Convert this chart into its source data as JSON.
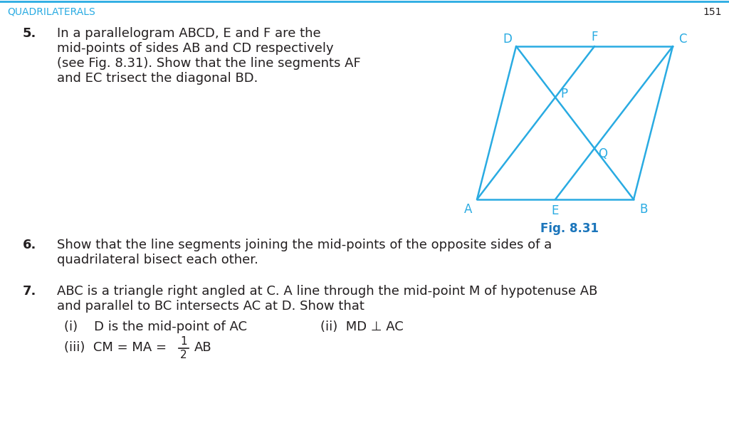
{
  "bg_color": "#ffffff",
  "cyan_color": "#29ABE2",
  "text_color": "#231F20",
  "dark_text": "#333333",
  "fig_caption_color": "#1B75BB",
  "header_text": "QUADRILATERALS",
  "header_page": "151",
  "diagram_color": "#29ABE2",
  "diagram_linewidth": 1.8,
  "fig_caption": "Fig. 8.31",
  "item5_lines": [
    "In a parallelogram ABCD, E and F are the",
    "mid-points of sides AB and CD respectively",
    "(see Fig. 8.31). Show that the line segments AF",
    "and EC trisect the diagonal BD."
  ],
  "item6_lines": [
    "Show that the line segments joining the mid-points of the opposite sides of a",
    "quadrilateral bisect each other."
  ],
  "item7_lines": [
    "ABC is a triangle right angled at C. A line through the mid-point M of hypotenuse AB",
    "and parallel to BC intersects AC at D. Show that"
  ],
  "sub_i_text": "(i)    D is the mid-point of AC",
  "sub_ii_text": "(ii)  MD ⊥ AC",
  "sub_iii_prefix": "(iii)  CM = MA = ",
  "frac_num": "1",
  "frac_denom": "2",
  "frac_suffix": "AB"
}
